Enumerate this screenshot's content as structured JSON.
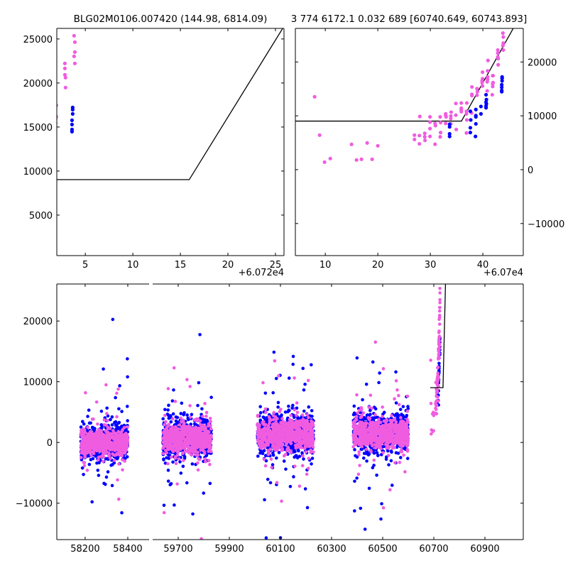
{
  "chart_data": [
    {
      "id": "panel_zoom_left",
      "type": "scatter",
      "title": "BLG02M0106.007420 (144.98, 6814.09)",
      "x_offset": 60720,
      "x_offset_label": "+6.072e4",
      "xlim": [
        2.0,
        25.9
      ],
      "ylim": [
        400,
        26200
      ],
      "xticks": [
        5,
        10,
        15,
        20,
        25
      ],
      "xtick_labels": [
        "5",
        "10",
        "15",
        "20",
        "25"
      ],
      "yticks": [
        5000,
        10000,
        15000,
        20000,
        25000
      ],
      "ytick_labels": [
        "5000",
        "10000",
        "15000",
        "20000",
        "25000"
      ],
      "ytick_side": "left",
      "grid": false
    },
    {
      "id": "panel_zoom_right",
      "type": "scatter",
      "title": "3 774 6172.1 0.032 689 [60740.649, 60743.893]",
      "x_offset": 60700,
      "x_offset_label": "+6.07e4",
      "xlim": [
        4.3,
        47.7
      ],
      "ylim": [
        -15960,
        26240
      ],
      "xticks": [
        10,
        20,
        30,
        40
      ],
      "xtick_labels": [
        "10",
        "20",
        "30",
        "40"
      ],
      "yticks": [
        -10000,
        0,
        10000,
        20000
      ],
      "ytick_labels": [
        "−10000",
        "0",
        "10000",
        "20000"
      ],
      "ytick_side": "right",
      "grid": false
    },
    {
      "id": "panel_full",
      "type": "scatter",
      "broken_x_axis": true,
      "segments": [
        {
          "xlim": [
            58067,
            58500
          ],
          "xticks": [
            58200,
            58400
          ],
          "xtick_labels": [
            "58200",
            "58400"
          ]
        },
        {
          "xlim": [
            59600,
            61050
          ],
          "xticks": [
            59700,
            59900,
            60100,
            60300,
            60500,
            60700,
            60900
          ],
          "xtick_labels": [
            "59700",
            "59900",
            "60100",
            "60300",
            "60500",
            "60700",
            "60900"
          ]
        }
      ],
      "ylim": [
        -16000,
        26100
      ],
      "yticks": [
        -10000,
        0,
        10000,
        20000
      ],
      "ytick_labels": [
        "−10000",
        "0",
        "10000",
        "20000"
      ],
      "seasons": [
        {
          "t": [
            58180,
            58400
          ],
          "center": 0,
          "sigma": 1100,
          "n": 650
        },
        {
          "t": [
            59640,
            59830
          ],
          "center": 600,
          "sigma": 1200,
          "n": 650
        },
        {
          "t": [
            60010,
            60230
          ],
          "center": 1300,
          "sigma": 1300,
          "n": 650
        },
        {
          "t": [
            60385,
            60600
          ],
          "center": 1500,
          "sigma": 1250,
          "n": 650
        }
      ],
      "grid": false
    }
  ],
  "colors": {
    "pink": "#f05ce0",
    "blue": "#0000ff",
    "model": "#000000"
  },
  "event": {
    "time_offset": 60700,
    "model": {
      "type": "broken-line",
      "break_t": 35.93,
      "level": 9024,
      "slope": 1747,
      "t_range": [
        -14,
        48
      ]
    },
    "pink": [
      [
        6.98,
        6416
      ],
      [
        6.98,
        5610
      ],
      [
        7.92,
        6335
      ],
      [
        7.92,
        4803
      ],
      [
        8.0,
        9884
      ],
      [
        8.94,
        6739
      ],
      [
        8.94,
        6094
      ],
      [
        8.99,
        5449
      ],
      [
        9.94,
        9803
      ],
      [
        9.94,
        8836
      ],
      [
        9.94,
        7626
      ],
      [
        9.94,
        6174
      ],
      [
        10.9,
        8594
      ],
      [
        10.98,
        8190
      ],
      [
        10.9,
        4723
      ],
      [
        11.88,
        9803
      ],
      [
        11.95,
        8755
      ],
      [
        11.95,
        6900
      ],
      [
        11.88,
        6094
      ],
      [
        12.92,
        10368
      ],
      [
        12.92,
        10126
      ],
      [
        13.0,
        9803
      ],
      [
        12.92,
        8594
      ],
      [
        13.97,
        10690
      ],
      [
        13.9,
        9964
      ],
      [
        13.9,
        9481
      ],
      [
        13.9,
        8513
      ],
      [
        14.86,
        12303
      ],
      [
        14.86,
        10126
      ],
      [
        14.94,
        7465
      ],
      [
        15.9,
        12383
      ],
      [
        15.9,
        11416
      ],
      [
        15.9,
        11093
      ],
      [
        15.9,
        10771
      ],
      [
        16.95,
        12383
      ],
      [
        16.88,
        10851
      ],
      [
        16.88,
        10368
      ],
      [
        16.95,
        9239
      ],
      [
        16.88,
        6819
      ],
      [
        17.85,
        10529
      ],
      [
        17.92,
        15367
      ],
      [
        17.92,
        13996
      ],
      [
        17.92,
        13754
      ],
      [
        18.89,
        15045
      ],
      [
        18.97,
        14480
      ],
      [
        18.89,
        13835
      ],
      [
        19.94,
        18109
      ],
      [
        19.94,
        16899
      ],
      [
        19.86,
        16496
      ],
      [
        19.86,
        16174
      ],
      [
        19.94,
        15529
      ],
      [
        20.98,
        20286
      ],
      [
        20.91,
        18351
      ],
      [
        20.91,
        17222
      ],
      [
        20.91,
        16738
      ],
      [
        20.83,
        16335
      ],
      [
        20.83,
        14642
      ],
      [
        21.88,
        17464
      ],
      [
        21.95,
        17464
      ],
      [
        21.95,
        16174
      ],
      [
        21.88,
        15932
      ],
      [
        21.88,
        15448
      ],
      [
        21.8,
        13916
      ],
      [
        22.85,
        22222
      ],
      [
        22.85,
        21657
      ],
      [
        22.85,
        20932
      ],
      [
        22.92,
        20609
      ],
      [
        22.92,
        19480
      ],
      [
        23.82,
        25367
      ],
      [
        23.9,
        24641
      ],
      [
        23.9,
        23512
      ],
      [
        23.82,
        23028
      ],
      [
        23.9,
        22222
      ]
    ],
    "blue": [
      [
        13.67,
        8432
      ],
      [
        13.67,
        7948
      ],
      [
        13.67,
        6658
      ],
      [
        13.67,
        6174
      ],
      [
        17.62,
        10851
      ],
      [
        17.7,
        9239
      ],
      [
        17.62,
        7787
      ],
      [
        17.62,
        6900
      ],
      [
        18.67,
        11174
      ],
      [
        18.67,
        10045
      ],
      [
        18.67,
        9803
      ],
      [
        18.67,
        8513
      ],
      [
        18.6,
        6174
      ],
      [
        19.64,
        11738
      ],
      [
        19.64,
        10368
      ],
      [
        20.61,
        13916
      ],
      [
        20.68,
        13029
      ],
      [
        20.61,
        12545
      ],
      [
        20.68,
        12222
      ],
      [
        20.61,
        11819
      ],
      [
        20.61,
        11496
      ],
      [
        23.67,
        17222
      ],
      [
        23.67,
        16980
      ],
      [
        23.67,
        16496
      ],
      [
        23.6,
        15771
      ],
      [
        23.6,
        15287
      ],
      [
        23.6,
        14722
      ],
      [
        23.6,
        14480
      ]
    ],
    "pink_early": [
      [
        -12.03,
        13538
      ],
      [
        -11.08,
        6418
      ],
      [
        -10.14,
        1407
      ],
      [
        -9.05,
        2066
      ],
      [
        -5.0,
        4703
      ],
      [
        -4.05,
        1802
      ],
      [
        -3.11,
        1934
      ],
      [
        -2.03,
        4967
      ],
      [
        -1.08,
        1934
      ],
      [
        0.0,
        4440
      ]
    ]
  }
}
